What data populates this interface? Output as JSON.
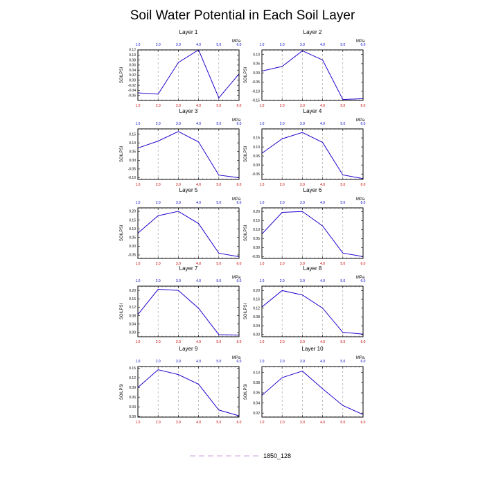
{
  "chart_data": {
    "type": "line",
    "title": "Soil Water Potential in Each Soil Layer",
    "x": [
      1.0,
      2.0,
      3.0,
      4.0,
      5.0,
      6.0
    ],
    "x_tick_labels": [
      "1.0",
      "2.0",
      "3.0",
      "4.0",
      "5.0",
      "6.0"
    ],
    "top_axis_unit": "MPa",
    "ylabel": "SOILPSI",
    "grid": "vertical dashed",
    "legend": {
      "label": "1850_128",
      "placement": "bottom-center"
    },
    "colors": {
      "series": "#2200cc",
      "legend_line": "#cc99dd",
      "bottom_ticks": "#cc0000",
      "top_ticks": "#0000cc",
      "grid": "#999999"
    },
    "panels": [
      {
        "title": "Layer 1",
        "ylim": [
          -0.08,
          0.12
        ],
        "yticks": [
          -0.06,
          -0.04,
          -0.02,
          0.0,
          0.02,
          0.04,
          0.06,
          0.08,
          0.1,
          0.12
        ],
        "ytick_labels": [
          "-0.06",
          "-0.04",
          "-0.02",
          "0.00",
          "0.02",
          "0.04",
          "0.06",
          "0.08",
          "0.10",
          "0.12"
        ],
        "values": [
          -0.05,
          -0.055,
          0.07,
          0.12,
          -0.07,
          0.025
        ]
      },
      {
        "title": "Layer 2",
        "ylim": [
          -0.15,
          0.125
        ],
        "yticks": [
          -0.15,
          -0.1,
          -0.05,
          0.0,
          0.05,
          0.1
        ],
        "ytick_labels": [
          "-0.15",
          "-0.10",
          "-0.05",
          "0.00",
          "0.05",
          "0.10"
        ],
        "values": [
          0.01,
          0.035,
          0.12,
          0.07,
          -0.145,
          -0.14
        ]
      },
      {
        "title": "Layer 3",
        "ylim": [
          -0.11,
          0.18
        ],
        "yticks": [
          -0.1,
          -0.05,
          0.0,
          0.05,
          0.1,
          0.15
        ],
        "ytick_labels": [
          "-0.10",
          "-0.05",
          "0.00",
          "0.05",
          "0.10",
          "0.15"
        ],
        "values": [
          0.07,
          0.11,
          0.165,
          0.105,
          -0.085,
          -0.1
        ]
      },
      {
        "title": "Layer 4",
        "ylim": [
          -0.08,
          0.2
        ],
        "yticks": [
          -0.05,
          0.0,
          0.05,
          0.1,
          0.15
        ],
        "ytick_labels": [
          "-0.05",
          "0.00",
          "0.05",
          "0.10",
          "0.15"
        ],
        "values": [
          0.065,
          0.145,
          0.18,
          0.125,
          -0.055,
          -0.075
        ]
      },
      {
        "title": "Layer 5",
        "ylim": [
          -0.07,
          0.22
        ],
        "yticks": [
          -0.05,
          0.0,
          0.05,
          0.1,
          0.15,
          0.2
        ],
        "ytick_labels": [
          "-0.05",
          "0.00",
          "0.05",
          "0.10",
          "0.15",
          "0.20"
        ],
        "values": [
          0.075,
          0.175,
          0.2,
          0.13,
          -0.04,
          -0.06
        ]
      },
      {
        "title": "Layer 6",
        "ylim": [
          -0.06,
          0.22
        ],
        "yticks": [
          -0.05,
          0.0,
          0.05,
          0.1,
          0.15,
          0.2
        ],
        "ytick_labels": [
          "-0.05",
          "0.00",
          "0.05",
          "0.10",
          "0.15",
          "0.20"
        ],
        "values": [
          0.075,
          0.195,
          0.2,
          0.12,
          -0.03,
          -0.05
        ]
      },
      {
        "title": "Layer 7",
        "ylim": [
          -0.02,
          0.22
        ],
        "yticks": [
          0.0,
          0.04,
          0.08,
          0.12,
          0.16,
          0.2
        ],
        "ytick_labels": [
          "0.00",
          "0.04",
          "0.08",
          "0.12",
          "0.16",
          "0.20"
        ],
        "values": [
          0.085,
          0.205,
          0.2,
          0.115,
          -0.01,
          -0.012
        ]
      },
      {
        "title": "Layer 8",
        "ylim": [
          -0.01,
          0.22
        ],
        "yticks": [
          0.0,
          0.04,
          0.08,
          0.12,
          0.16,
          0.2
        ],
        "ytick_labels": [
          "0.00",
          "0.04",
          "0.08",
          "0.12",
          "0.16",
          "0.20"
        ],
        "values": [
          0.125,
          0.2,
          0.18,
          0.12,
          0.01,
          0.002
        ]
      },
      {
        "title": "Layer 9",
        "ylim": [
          -0.002,
          0.155
        ],
        "yticks": [
          0.0,
          0.03,
          0.06,
          0.09,
          0.12,
          0.15
        ],
        "ytick_labels": [
          "0.00",
          "0.03",
          "0.06",
          "0.09",
          "0.12",
          "0.15"
        ],
        "values": [
          0.09,
          0.145,
          0.13,
          0.1,
          0.02,
          0.002
        ]
      },
      {
        "title": "Layer 10",
        "ylim": [
          0.012,
          0.112
        ],
        "yticks": [
          0.02,
          0.04,
          0.06,
          0.08,
          0.1
        ],
        "ytick_labels": [
          "0.02",
          "0.04",
          "0.06",
          "0.08",
          "0.10"
        ],
        "values": [
          0.055,
          0.09,
          0.103,
          0.068,
          0.035,
          0.017
        ]
      }
    ]
  }
}
